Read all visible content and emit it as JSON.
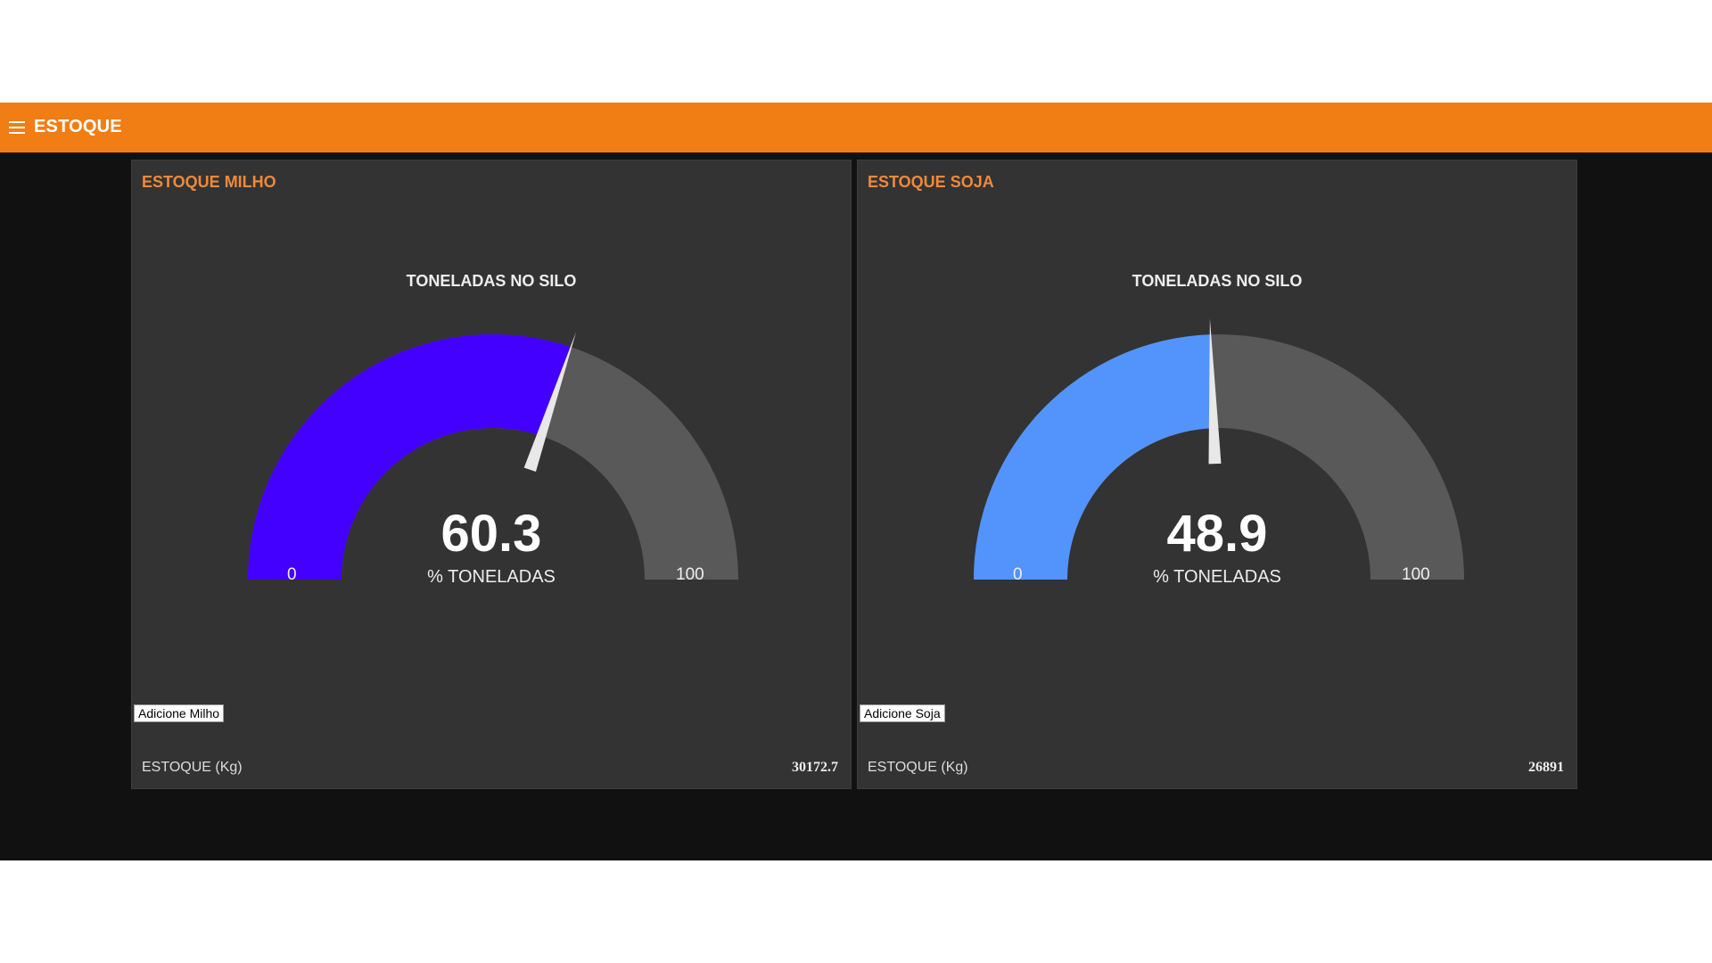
{
  "header": {
    "menu_icon": "hamburger-menu-icon",
    "title": "ESTOQUE",
    "color": "#f07e15"
  },
  "cards": [
    {
      "title": "ESTOQUE MILHO",
      "gauge": {
        "label": "TONELADAS NO SILO",
        "value": 60.3,
        "value_text": "60.3",
        "unit": "% TONELADAS",
        "min": 0,
        "max": 100,
        "min_text": "0",
        "max_text": "100",
        "fill_color": "#4400ff",
        "track_color": "#595959"
      },
      "button_label": "Adicione Milho",
      "stock_label": "ESTOQUE (Kg)",
      "stock_value": "30172.7"
    },
    {
      "title": "ESTOQUE SOJA",
      "gauge": {
        "label": "TONELADAS NO SILO",
        "value": 48.9,
        "value_text": "48.9",
        "unit": "% TONELADAS",
        "min": 0,
        "max": 100,
        "min_text": "0",
        "max_text": "100",
        "fill_color": "#5294fb",
        "track_color": "#595959"
      },
      "button_label": "Adicione Soja",
      "stock_label": "ESTOQUE (Kg)",
      "stock_value": "26891"
    }
  ]
}
